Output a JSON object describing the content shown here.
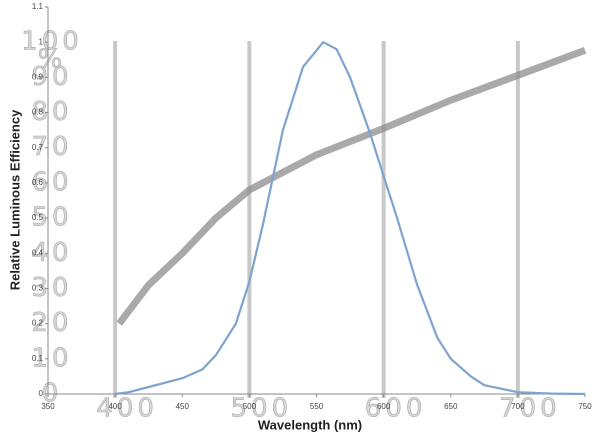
{
  "chart_data": {
    "type": "line",
    "xlabel": "Wavelength (nm)",
    "ylabel": "Relative Luminous Efficiency",
    "xlim": [
      350,
      750
    ],
    "xticks": [
      350,
      400,
      450,
      500,
      550,
      600,
      650,
      700,
      750
    ],
    "ylim": [
      0,
      1.1
    ],
    "yticks": [
      0,
      0.1,
      0.2,
      0.3,
      0.4,
      0.5,
      0.6,
      0.7,
      0.8,
      0.9,
      1,
      1.1
    ],
    "grid": false,
    "series": [
      {
        "color": "#7ea3cf",
        "x": [
          400,
          410,
          425,
          450,
          465,
          475,
          490,
          500,
          510,
          525,
          540,
          555,
          565,
          575,
          590,
          600,
          610,
          625,
          640,
          650,
          665,
          675,
          700,
          725,
          750
        ],
        "values": [
          0,
          0.005,
          0.02,
          0.045,
          0.07,
          0.11,
          0.2,
          0.32,
          0.48,
          0.75,
          0.93,
          1.0,
          0.98,
          0.9,
          0.74,
          0.62,
          0.5,
          0.31,
          0.16,
          0.1,
          0.05,
          0.025,
          0.005,
          0.001,
          0
        ]
      }
    ],
    "overlay": {
      "color": "#8c8c8c",
      "y2lim": [
        0,
        110
      ],
      "y2ticks": [
        0,
        10,
        20,
        30,
        40,
        50,
        60,
        70,
        80,
        90,
        100
      ],
      "y2unit": "%",
      "xticks": [
        400,
        500,
        600,
        700
      ],
      "x": [
        403,
        425,
        450,
        475,
        500,
        550,
        600,
        650,
        700,
        750
      ],
      "values": [
        20,
        31,
        40,
        50,
        58,
        68,
        75.5,
        83.5,
        90.6,
        97.7
      ]
    }
  }
}
